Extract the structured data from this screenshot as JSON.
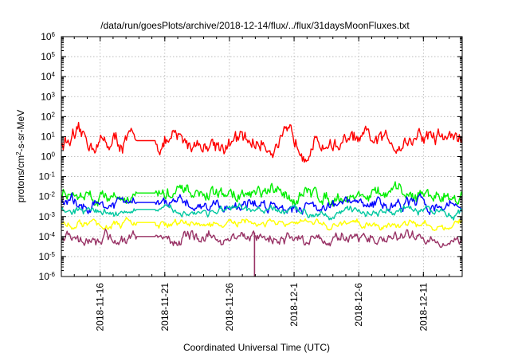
{
  "chart_data": {
    "type": "line",
    "title": "/data/run/goesPlots/archive/2018-12-14/flux/../flux/31daysMoonFluxes.txt",
    "xlabel": "Coordinated Universal Time (UTC)",
    "ylabel_main": "protons/cm",
    "ylabel_sup": "2",
    "ylabel_rest": "-s-sr-MeV",
    "x_range": [
      "2018-11-13",
      "2018-12-14"
    ],
    "x_ticks": [
      "2018-11-16",
      "2018-11-21",
      "2018-11-26",
      "2018-12-1",
      "2018-12-6",
      "2018-12-11"
    ],
    "y_scale": "log",
    "ylim": [
      1e-06,
      1000000.0
    ],
    "y_tick_exponents": [
      "-6",
      "-5",
      "-4",
      "-3",
      "-2",
      "-1",
      "0",
      "1",
      "2",
      "3",
      "4",
      "5",
      "6"
    ],
    "grid": true,
    "series": [
      {
        "color": "#ff0000",
        "typical": 5,
        "spread": 0.45,
        "trend_end": 2.0
      },
      {
        "color": "#00ee00",
        "typical": 0.012,
        "spread": 0.35,
        "trend_end": 1.0
      },
      {
        "color": "#0000ff",
        "typical": 0.004,
        "spread": 0.3,
        "trend_end": 1.0
      },
      {
        "color": "#00c8a0",
        "typical": 0.0018,
        "spread": 0.2,
        "trend_end": 1.0
      },
      {
        "color": "#ffff00",
        "typical": 0.0004,
        "spread": 0.2,
        "trend_end": 1.0
      },
      {
        "color": "#993366",
        "typical": 8e-05,
        "spread": 0.3,
        "trend_end": 1.0
      }
    ]
  }
}
